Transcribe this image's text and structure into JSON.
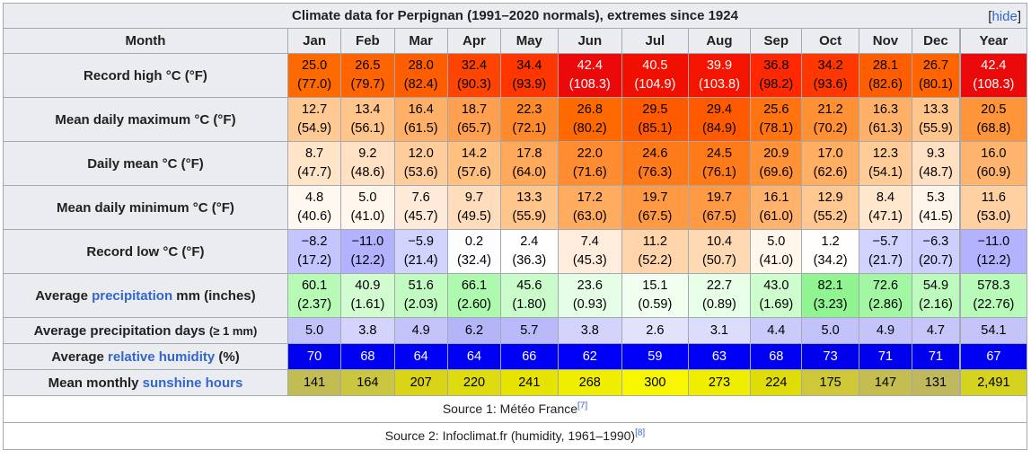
{
  "title": "Climate data for Perpignan (1991–2020 normals), extremes since 1924",
  "hide_label": "hide",
  "header": [
    "Month",
    "Jan",
    "Feb",
    "Mar",
    "Apr",
    "May",
    "Jun",
    "Jul",
    "Aug",
    "Sep",
    "Oct",
    "Nov",
    "Dec",
    "Year"
  ],
  "rows": [
    {
      "label": "Record high °C (°F)",
      "two": true,
      "cells": [
        {
          "v": "25.0",
          "s": "(77.0)",
          "bg": "#ff6a00",
          "fg": "#000000"
        },
        {
          "v": "26.5",
          "s": "(79.7)",
          "bg": "#ff6400",
          "fg": "#000000"
        },
        {
          "v": "28.0",
          "s": "(82.4)",
          "bg": "#ff5e00",
          "fg": "#000000"
        },
        {
          "v": "32.4",
          "s": "(90.3)",
          "bg": "#ff4300",
          "fg": "#000000"
        },
        {
          "v": "34.4",
          "s": "(93.9)",
          "bg": "#ff3600",
          "fg": "#000000"
        },
        {
          "v": "42.4",
          "s": "(108.3)",
          "bg": "#ea0a0a",
          "fg": "#ffffff"
        },
        {
          "v": "40.5",
          "s": "(104.9)",
          "bg": "#f10f00",
          "fg": "#ffffff"
        },
        {
          "v": "39.9",
          "s": "(103.8)",
          "bg": "#f41400",
          "fg": "#ffffff"
        },
        {
          "v": "36.8",
          "s": "(98.2)",
          "bg": "#ff2800",
          "fg": "#000000"
        },
        {
          "v": "34.2",
          "s": "(93.6)",
          "bg": "#ff3700",
          "fg": "#000000"
        },
        {
          "v": "28.1",
          "s": "(82.6)",
          "bg": "#ff5e00",
          "fg": "#000000"
        },
        {
          "v": "26.7",
          "s": "(80.1)",
          "bg": "#ff6400",
          "fg": "#000000"
        },
        {
          "v": "42.4",
          "s": "(108.3)",
          "bg": "#ea0a0a",
          "fg": "#ffffff"
        }
      ]
    },
    {
      "label": "Mean daily maximum °C (°F)",
      "two": true,
      "cells": [
        {
          "v": "12.7",
          "s": "(54.9)",
          "bg": "#ffc994",
          "fg": "#000000"
        },
        {
          "v": "13.4",
          "s": "(56.1)",
          "bg": "#ffc58a",
          "fg": "#000000"
        },
        {
          "v": "16.4",
          "s": "(61.5)",
          "bg": "#ffb068",
          "fg": "#000000"
        },
        {
          "v": "18.7",
          "s": "(65.7)",
          "bg": "#ffa050",
          "fg": "#000000"
        },
        {
          "v": "22.3",
          "s": "(72.1)",
          "bg": "#ff8a2c",
          "fg": "#000000"
        },
        {
          "v": "26.8",
          "s": "(80.2)",
          "bg": "#ff6a00",
          "fg": "#000000"
        },
        {
          "v": "29.5",
          "s": "(85.1)",
          "bg": "#ff5a00",
          "fg": "#000000"
        },
        {
          "v": "29.4",
          "s": "(84.9)",
          "bg": "#ff5a00",
          "fg": "#000000"
        },
        {
          "v": "25.6",
          "s": "(78.1)",
          "bg": "#ff7410",
          "fg": "#000000"
        },
        {
          "v": "21.2",
          "s": "(70.2)",
          "bg": "#ff9034",
          "fg": "#000000"
        },
        {
          "v": "16.3",
          "s": "(61.3)",
          "bg": "#ffb068",
          "fg": "#000000"
        },
        {
          "v": "13.3",
          "s": "(55.9)",
          "bg": "#ffc58a",
          "fg": "#000000"
        },
        {
          "v": "20.5",
          "s": "(68.8)",
          "bg": "#ff9438",
          "fg": "#000000"
        }
      ]
    },
    {
      "label": "Daily mean °C (°F)",
      "two": true,
      "cells": [
        {
          "v": "8.7",
          "s": "(47.7)",
          "bg": "#ffe4c8",
          "fg": "#000000"
        },
        {
          "v": "9.2",
          "s": "(48.6)",
          "bg": "#ffe0c2",
          "fg": "#000000"
        },
        {
          "v": "12.0",
          "s": "(53.6)",
          "bg": "#ffcd9c",
          "fg": "#000000"
        },
        {
          "v": "14.2",
          "s": "(57.6)",
          "bg": "#ffc080",
          "fg": "#000000"
        },
        {
          "v": "17.8",
          "s": "(64.0)",
          "bg": "#ffa85a",
          "fg": "#000000"
        },
        {
          "v": "22.0",
          "s": "(71.6)",
          "bg": "#ff8c30",
          "fg": "#000000"
        },
        {
          "v": "24.6",
          "s": "(76.3)",
          "bg": "#ff7a18",
          "fg": "#000000"
        },
        {
          "v": "24.5",
          "s": "(76.1)",
          "bg": "#ff7a18",
          "fg": "#000000"
        },
        {
          "v": "20.9",
          "s": "(69.6)",
          "bg": "#ff9236",
          "fg": "#000000"
        },
        {
          "v": "17.0",
          "s": "(62.6)",
          "bg": "#ffae62",
          "fg": "#000000"
        },
        {
          "v": "12.3",
          "s": "(54.1)",
          "bg": "#ffcc98",
          "fg": "#000000"
        },
        {
          "v": "9.3",
          "s": "(48.7)",
          "bg": "#ffe0c2",
          "fg": "#000000"
        },
        {
          "v": "16.0",
          "s": "(60.9)",
          "bg": "#ffb46e",
          "fg": "#000000"
        }
      ]
    },
    {
      "label": "Mean daily minimum °C (°F)",
      "two": true,
      "cells": [
        {
          "v": "4.8",
          "s": "(40.6)",
          "bg": "#fff8f0",
          "fg": "#000000"
        },
        {
          "v": "5.0",
          "s": "(41.0)",
          "bg": "#fff6ec",
          "fg": "#000000"
        },
        {
          "v": "7.6",
          "s": "(45.7)",
          "bg": "#ffeada",
          "fg": "#000000"
        },
        {
          "v": "9.7",
          "s": "(49.5)",
          "bg": "#ffddbc",
          "fg": "#000000"
        },
        {
          "v": "13.3",
          "s": "(55.9)",
          "bg": "#ffc58a",
          "fg": "#000000"
        },
        {
          "v": "17.2",
          "s": "(63.0)",
          "bg": "#ffac60",
          "fg": "#000000"
        },
        {
          "v": "19.7",
          "s": "(67.5)",
          "bg": "#ff9a44",
          "fg": "#000000"
        },
        {
          "v": "19.7",
          "s": "(67.5)",
          "bg": "#ff9a44",
          "fg": "#000000"
        },
        {
          "v": "16.1",
          "s": "(61.0)",
          "bg": "#ffb26c",
          "fg": "#000000"
        },
        {
          "v": "12.9",
          "s": "(55.2)",
          "bg": "#ffc890",
          "fg": "#000000"
        },
        {
          "v": "8.4",
          "s": "(47.1)",
          "bg": "#ffe6cc",
          "fg": "#000000"
        },
        {
          "v": "5.3",
          "s": "(41.5)",
          "bg": "#fff5ea",
          "fg": "#000000"
        },
        {
          "v": "11.6",
          "s": "(53.0)",
          "bg": "#ffd0a2",
          "fg": "#000000"
        }
      ]
    },
    {
      "label": "Record low °C (°F)",
      "two": true,
      "cells": [
        {
          "v": "−8.2",
          "s": "(17.2)",
          "bg": "#c4c4ff",
          "fg": "#000000"
        },
        {
          "v": "−11.0",
          "s": "(12.2)",
          "bg": "#b2b2ff",
          "fg": "#000000"
        },
        {
          "v": "−5.9",
          "s": "(21.4)",
          "bg": "#d2d2ff",
          "fg": "#000000"
        },
        {
          "v": "0.2",
          "s": "(32.4)",
          "bg": "#fdfdff",
          "fg": "#000000"
        },
        {
          "v": "2.4",
          "s": "(36.3)",
          "bg": "#ffffff",
          "fg": "#000000"
        },
        {
          "v": "7.4",
          "s": "(45.3)",
          "bg": "#ffecdc",
          "fg": "#000000"
        },
        {
          "v": "11.2",
          "s": "(52.2)",
          "bg": "#ffd4aa",
          "fg": "#000000"
        },
        {
          "v": "10.4",
          "s": "(50.7)",
          "bg": "#ffd9b4",
          "fg": "#000000"
        },
        {
          "v": "5.0",
          "s": "(41.0)",
          "bg": "#fff6ec",
          "fg": "#000000"
        },
        {
          "v": "1.2",
          "s": "(34.2)",
          "bg": "#fffefd",
          "fg": "#000000"
        },
        {
          "v": "−5.7",
          "s": "(21.7)",
          "bg": "#d2d2ff",
          "fg": "#000000"
        },
        {
          "v": "−6.3",
          "s": "(20.7)",
          "bg": "#cfcfff",
          "fg": "#000000"
        },
        {
          "v": "−11.0",
          "s": "(12.2)",
          "bg": "#b2b2ff",
          "fg": "#000000"
        }
      ]
    },
    {
      "label": "Average precipitation mm (inches)",
      "link": "precipitation",
      "two": true,
      "cells": [
        {
          "v": "60.1",
          "s": "(2.37)",
          "bg": "#b6fab6",
          "fg": "#000000"
        },
        {
          "v": "40.9",
          "s": "(1.61)",
          "bg": "#d0fcd0",
          "fg": "#000000"
        },
        {
          "v": "51.6",
          "s": "(2.03)",
          "bg": "#c2fbc2",
          "fg": "#000000"
        },
        {
          "v": "66.1",
          "s": "(2.60)",
          "bg": "#adf9ad",
          "fg": "#000000"
        },
        {
          "v": "45.6",
          "s": "(1.80)",
          "bg": "#cafbca",
          "fg": "#000000"
        },
        {
          "v": "23.6",
          "s": "(0.93)",
          "bg": "#e6fee6",
          "fg": "#000000"
        },
        {
          "v": "15.1",
          "s": "(0.59)",
          "bg": "#f0fff0",
          "fg": "#000000"
        },
        {
          "v": "22.7",
          "s": "(0.89)",
          "bg": "#e7fee7",
          "fg": "#000000"
        },
        {
          "v": "43.0",
          "s": "(1.69)",
          "bg": "#cdfccd",
          "fg": "#000000"
        },
        {
          "v": "82.1",
          "s": "(3.23)",
          "bg": "#90f590",
          "fg": "#000000"
        },
        {
          "v": "72.6",
          "s": "(2.86)",
          "bg": "#a2f7a2",
          "fg": "#000000"
        },
        {
          "v": "54.9",
          "s": "(2.16)",
          "bg": "#bdfabd",
          "fg": "#000000"
        },
        {
          "v": "578.3",
          "s": "(22.76)",
          "bg": "#b8fab8",
          "fg": "#000000"
        }
      ]
    },
    {
      "label": "Average precipitation days (≥ 1 mm)",
      "small": "(≥ 1 mm)",
      "two": false,
      "cells": [
        {
          "v": "5.0",
          "bg": "#c2c2fb",
          "fg": "#000000"
        },
        {
          "v": "3.8",
          "bg": "#d3d3fc",
          "fg": "#000000"
        },
        {
          "v": "4.9",
          "bg": "#c4c4fb",
          "fg": "#000000"
        },
        {
          "v": "6.2",
          "bg": "#b4b4f9",
          "fg": "#000000"
        },
        {
          "v": "5.7",
          "bg": "#babafa",
          "fg": "#000000"
        },
        {
          "v": "3.8",
          "bg": "#d3d3fc",
          "fg": "#000000"
        },
        {
          "v": "2.6",
          "bg": "#e2e2fd",
          "fg": "#000000"
        },
        {
          "v": "3.1",
          "bg": "#dcdcfd",
          "fg": "#000000"
        },
        {
          "v": "4.4",
          "bg": "#cacafb",
          "fg": "#000000"
        },
        {
          "v": "5.0",
          "bg": "#c2c2fb",
          "fg": "#000000"
        },
        {
          "v": "4.9",
          "bg": "#c4c4fb",
          "fg": "#000000"
        },
        {
          "v": "4.7",
          "bg": "#c6c6fb",
          "fg": "#000000"
        },
        {
          "v": "54.1",
          "bg": "#c4c4fb",
          "fg": "#000000"
        }
      ]
    },
    {
      "label_pre": "Average ",
      "link": "relative humidity",
      "label_post": " (%)",
      "two": false,
      "cells": [
        {
          "v": "70",
          "bg": "#0000f0",
          "fg": "#ffffff"
        },
        {
          "v": "68",
          "bg": "#0000f3",
          "fg": "#ffffff"
        },
        {
          "v": "64",
          "bg": "#0000f6",
          "fg": "#ffffff"
        },
        {
          "v": "64",
          "bg": "#0000f6",
          "fg": "#ffffff"
        },
        {
          "v": "66",
          "bg": "#0000f4",
          "fg": "#ffffff"
        },
        {
          "v": "62",
          "bg": "#0000f8",
          "fg": "#ffffff"
        },
        {
          "v": "59",
          "bg": "#0000fa",
          "fg": "#ffffff"
        },
        {
          "v": "63",
          "bg": "#0000f7",
          "fg": "#ffffff"
        },
        {
          "v": "68",
          "bg": "#0000f3",
          "fg": "#ffffff"
        },
        {
          "v": "73",
          "bg": "#0000ec",
          "fg": "#ffffff"
        },
        {
          "v": "71",
          "bg": "#0000ef",
          "fg": "#ffffff"
        },
        {
          "v": "71",
          "bg": "#0000ef",
          "fg": "#ffffff"
        },
        {
          "v": "67",
          "bg": "#0000f3",
          "fg": "#ffffff"
        }
      ]
    },
    {
      "label_pre": "Mean monthly ",
      "link": "sunshine hours",
      "label_post": "",
      "two": false,
      "cells": [
        {
          "v": "141",
          "bg": "#c2bc55",
          "fg": "#000000"
        },
        {
          "v": "164",
          "bg": "#cbc640",
          "fg": "#000000"
        },
        {
          "v": "207",
          "bg": "#d9d418",
          "fg": "#000000"
        },
        {
          "v": "220",
          "bg": "#dedb10",
          "fg": "#000000"
        },
        {
          "v": "241",
          "bg": "#e6e300",
          "fg": "#000000"
        },
        {
          "v": "268",
          "bg": "#efed00",
          "fg": "#000000"
        },
        {
          "v": "300",
          "bg": "#f8f700",
          "fg": "#000000"
        },
        {
          "v": "273",
          "bg": "#f0ee00",
          "fg": "#000000"
        },
        {
          "v": "224",
          "bg": "#e0dc08",
          "fg": "#000000"
        },
        {
          "v": "175",
          "bg": "#cec838",
          "fg": "#000000"
        },
        {
          "v": "147",
          "bg": "#c4be50",
          "fg": "#000000"
        },
        {
          "v": "131",
          "bg": "#bfb85c",
          "fg": "#000000"
        },
        {
          "v": "2,491",
          "bg": "#d6d220",
          "fg": "#000000"
        }
      ]
    }
  ],
  "source1": {
    "text": "Source 1: Météo France",
    "ref": "[7]"
  },
  "source2": {
    "text": "Source 2: Infoclimat.fr (humidity, 1961–1990)",
    "ref": "[8]"
  }
}
